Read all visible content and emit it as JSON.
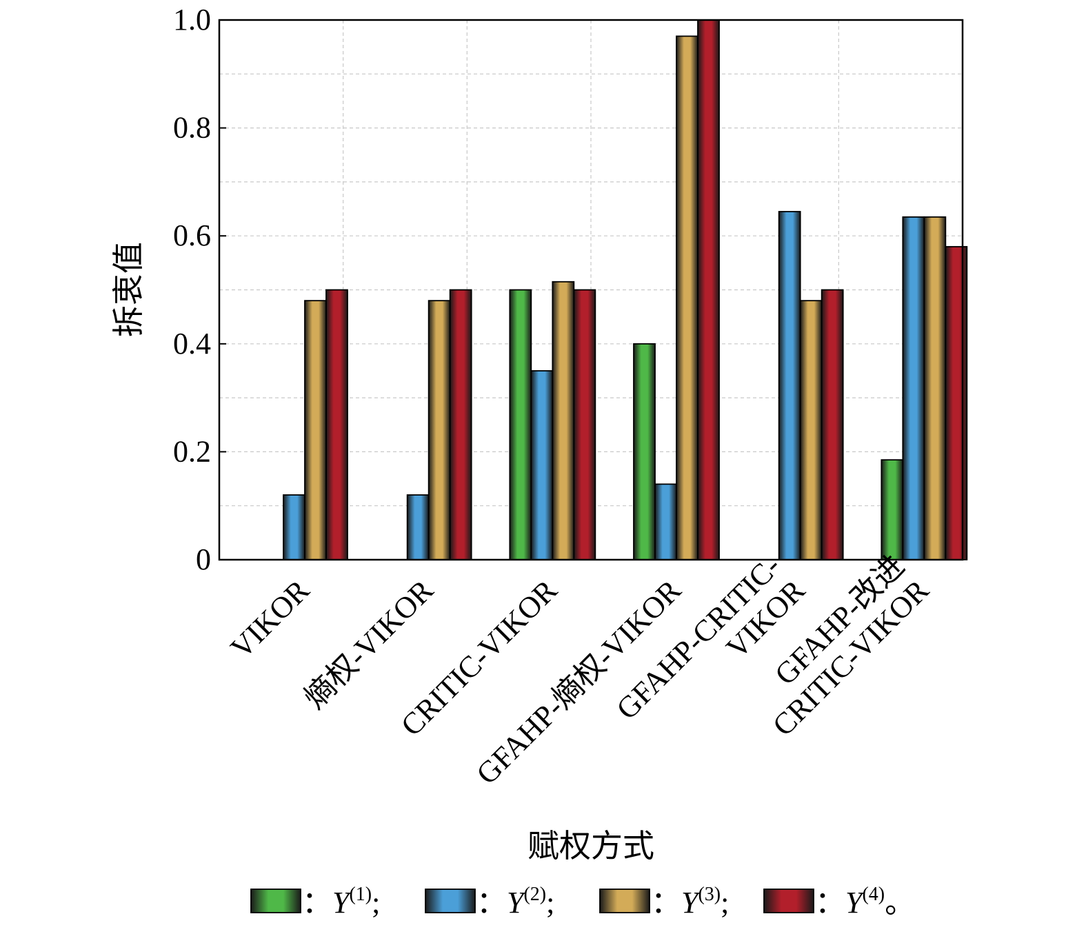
{
  "chart_data": {
    "type": "bar",
    "title": "",
    "xlabel": "赋权方式",
    "ylabel": "拆衷值",
    "ylim": [
      0,
      1.0
    ],
    "yticks": [
      0,
      0.2,
      0.4,
      0.6,
      0.8,
      1.0
    ],
    "ytick_labels": [
      "0",
      "0.2",
      "0.4",
      "0.6",
      "0.8",
      "1.0"
    ],
    "grid": true,
    "categories": [
      [
        "VIKOR"
      ],
      [
        "熵权-VIKOR"
      ],
      [
        "CRITIC-VIKOR"
      ],
      [
        "GFAHP-熵权-VIKOR"
      ],
      [
        "GFAHP-CRITIC-",
        "VIKOR"
      ],
      [
        "GFAHP-改进",
        "CRITIC-VIKOR"
      ]
    ],
    "series": [
      {
        "name": "Y",
        "sup": "(1)",
        "sep": ";",
        "color": "#4fb848",
        "values": [
          0,
          0,
          0.5,
          0.4,
          0,
          0.185
        ]
      },
      {
        "name": "Y",
        "sup": "(2)",
        "sep": ";",
        "color": "#4b9fd8",
        "values": [
          0.12,
          0.12,
          0.35,
          0.14,
          0.645,
          0.635
        ]
      },
      {
        "name": "Y",
        "sup": "(3)",
        "sep": ";",
        "color": "#d3ab58",
        "values": [
          0.48,
          0.48,
          0.515,
          0.97,
          0.48,
          0.635
        ]
      },
      {
        "name": "Y",
        "sup": "(4)",
        "sep": "。",
        "color": "#b21f2b",
        "values": [
          0.5,
          0.5,
          0.5,
          1.0,
          0.5,
          0.58
        ]
      }
    ],
    "legend_position": "bottom",
    "legend_prefix": "："
  }
}
